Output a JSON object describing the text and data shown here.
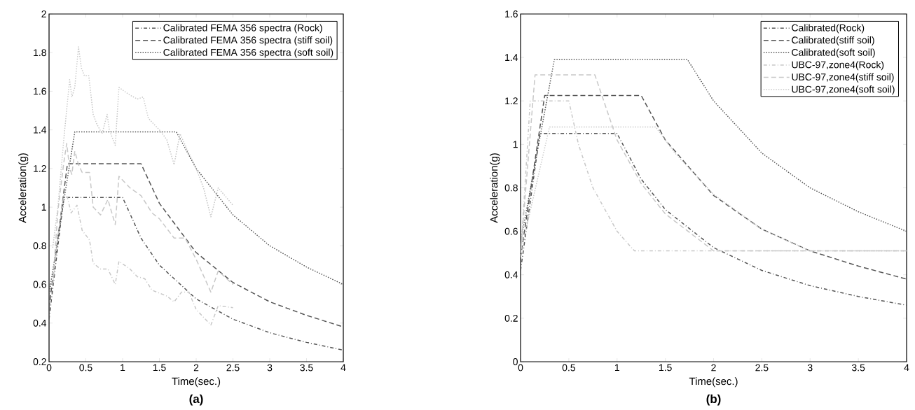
{
  "chart_data": [
    {
      "type": "line",
      "xlabel": "Time(sec.)",
      "ylabel": "Acceleration(g)",
      "annotations": [
        "(a)"
      ],
      "xlim": [
        0,
        4
      ],
      "ylim": [
        0.2,
        2
      ],
      "xticks": [
        0,
        0.5,
        1,
        1.5,
        2,
        2.5,
        3,
        3.5,
        4
      ],
      "yticks": [
        0.2,
        0.4,
        0.6,
        0.8,
        1,
        1.2,
        1.4,
        1.6,
        1.8,
        2
      ],
      "grid": false,
      "legend": "top right",
      "series": [
        {
          "name": "Calibrated FEMA 356 spectra (Rock)",
          "color": "#555555",
          "line_style": "dashdot",
          "x": [
            0,
            0.2,
            1.0,
            1.25,
            1.5,
            2,
            2.5,
            3,
            3.5,
            4
          ],
          "values": [
            0.42,
            1.05,
            1.05,
            0.84,
            0.7,
            0.525,
            0.42,
            0.35,
            0.3,
            0.26
          ]
        },
        {
          "name": "Calibrated FEMA 356 spectra (stiff soil)",
          "color": "#555555",
          "line_style": "dashed",
          "x": [
            0,
            0.25,
            1.25,
            1.5,
            2,
            2.5,
            3,
            3.5,
            4
          ],
          "values": [
            0.48,
            1.225,
            1.225,
            1.02,
            0.765,
            0.61,
            0.51,
            0.44,
            0.38
          ]
        },
        {
          "name": "Calibrated FEMA 356 spectra (soft soil)",
          "color": "#555555",
          "line_style": "dotted",
          "x": [
            0,
            0.35,
            1.73,
            2,
            2.5,
            3,
            3.5,
            4
          ],
          "values": [
            0.55,
            1.39,
            1.39,
            1.2,
            0.96,
            0.8,
            0.69,
            0.6
          ]
        },
        {
          "color": "#c8c8c8",
          "line_style": "dashdot",
          "x": [
            0.05,
            0.12,
            0.2,
            0.25,
            0.3,
            0.38,
            0.45,
            0.55,
            0.6,
            0.7,
            0.8,
            0.9,
            0.95,
            1.1,
            1.2,
            1.3,
            1.4,
            1.6,
            1.7,
            1.8,
            1.9,
            2.0,
            2.2,
            2.3,
            2.5
          ],
          "values": [
            0.6,
            0.85,
            1.06,
            1.05,
            0.97,
            1.01,
            0.88,
            0.83,
            0.71,
            0.68,
            0.68,
            0.6,
            0.72,
            0.68,
            0.64,
            0.63,
            0.57,
            0.54,
            0.51,
            0.56,
            0.56,
            0.47,
            0.39,
            0.49,
            0.48
          ]
        },
        {
          "color": "#c8c8c8",
          "line_style": "dashed",
          "x": [
            0.05,
            0.12,
            0.2,
            0.24,
            0.28,
            0.31,
            0.35,
            0.4,
            0.45,
            0.55,
            0.6,
            0.7,
            0.8,
            0.9,
            0.95,
            1.1,
            1.25,
            1.4,
            1.5,
            1.7,
            1.85,
            2.0,
            2.2,
            2.3,
            2.5
          ],
          "values": [
            0.6,
            0.98,
            1.23,
            1.33,
            1.2,
            1.17,
            1.29,
            1.22,
            1.18,
            1.18,
            1.0,
            0.96,
            1.04,
            0.91,
            1.16,
            1.1,
            1.06,
            0.97,
            0.94,
            0.84,
            0.84,
            0.73,
            0.56,
            0.67,
            0.6
          ]
        },
        {
          "color": "#c8c8c8",
          "line_style": "dotted",
          "x": [
            0.05,
            0.12,
            0.2,
            0.28,
            0.31,
            0.35,
            0.4,
            0.44,
            0.48,
            0.54,
            0.6,
            0.65,
            0.72,
            0.79,
            0.82,
            0.9,
            0.95,
            1.1,
            1.2,
            1.28,
            1.35,
            1.5,
            1.6,
            1.7,
            1.78,
            1.9,
            2.0,
            2.1,
            2.2,
            2.3,
            2.5
          ],
          "values": [
            0.79,
            1.0,
            1.35,
            1.66,
            1.57,
            1.62,
            1.83,
            1.72,
            1.68,
            1.68,
            1.48,
            1.43,
            1.38,
            1.48,
            1.4,
            1.32,
            1.62,
            1.58,
            1.56,
            1.57,
            1.46,
            1.4,
            1.35,
            1.22,
            1.38,
            1.28,
            1.2,
            1.1,
            0.95,
            1.1,
            1.01
          ]
        }
      ]
    },
    {
      "type": "line",
      "xlabel": "Time(sec.)",
      "ylabel": "Acceleration(g)",
      "annotations": [
        "(b)"
      ],
      "xlim": [
        0,
        4
      ],
      "ylim": [
        0,
        1.6
      ],
      "xticks": [
        0,
        0.5,
        1,
        1.5,
        2,
        2.5,
        3,
        3.5,
        4
      ],
      "yticks": [
        0,
        0.2,
        0.4,
        0.6,
        0.8,
        1,
        1.2,
        1.4,
        1.6
      ],
      "grid": false,
      "legend": "top right",
      "series": [
        {
          "name": "Calibrated(Rock)",
          "color": "#555555",
          "line_style": "dashdot",
          "x": [
            0,
            0.2,
            1.0,
            1.25,
            1.5,
            2,
            2.5,
            3,
            3.5,
            4
          ],
          "values": [
            0.42,
            1.05,
            1.05,
            0.84,
            0.7,
            0.525,
            0.42,
            0.35,
            0.3,
            0.26
          ]
        },
        {
          "name": "Calibrated(stiff soil)",
          "color": "#555555",
          "line_style": "dashed",
          "x": [
            0,
            0.25,
            1.25,
            1.5,
            2,
            2.5,
            3,
            3.5,
            4
          ],
          "values": [
            0.48,
            1.225,
            1.225,
            1.02,
            0.765,
            0.61,
            0.51,
            0.44,
            0.38
          ]
        },
        {
          "name": "Calibrated(soft soil)",
          "color": "#555555",
          "line_style": "dotted",
          "x": [
            0,
            0.35,
            1.73,
            2,
            2.5,
            3,
            3.5,
            4
          ],
          "values": [
            0.55,
            1.39,
            1.39,
            1.2,
            0.96,
            0.8,
            0.69,
            0.6
          ]
        },
        {
          "name": "UBC-97,zone4(Rock)",
          "color": "#c8c8c8",
          "line_style": "dashdot",
          "x": [
            0,
            0.1,
            0.5,
            0.6,
            0.75,
            1.0,
            1.18,
            4
          ],
          "values": [
            0.48,
            1.2,
            1.2,
            1.0,
            0.8,
            0.6,
            0.51,
            0.51
          ]
        },
        {
          "name": "UBC-97,zone4(stiff soil)",
          "color": "#c8c8c8",
          "line_style": "dashed",
          "x": [
            0,
            0.15,
            0.77,
            1.0,
            1.25,
            1.5,
            2,
            4
          ],
          "values": [
            0.5,
            1.32,
            1.32,
            1.02,
            0.82,
            0.68,
            0.51,
            0.51
          ]
        },
        {
          "name": "UBC-97,zone4(soft soil)",
          "color": "#c8c8c8",
          "line_style": "dotted",
          "x": [
            0,
            0.3,
            1.4,
            1.6,
            2,
            2.5,
            3,
            4
          ],
          "values": [
            0.5,
            1.08,
            1.08,
            0.96,
            0.77,
            0.61,
            0.51,
            0.51
          ]
        }
      ]
    }
  ]
}
